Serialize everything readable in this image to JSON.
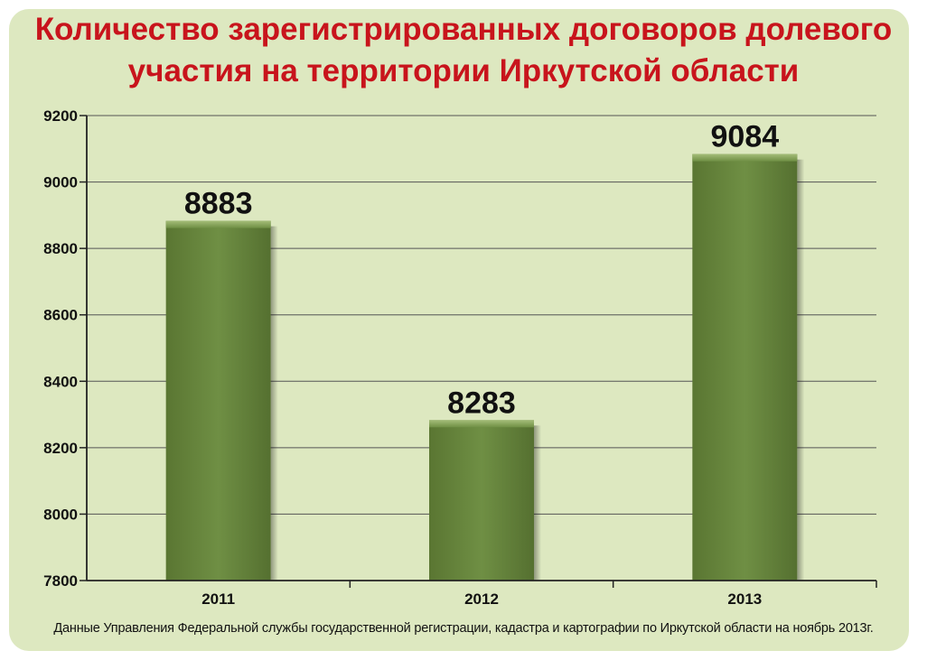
{
  "chart_data": {
    "type": "bar",
    "title": "Количество зарегистрированных договоров долевого участия на территории Иркутской области",
    "categories": [
      "2011",
      "2012",
      "2013"
    ],
    "values": [
      8883,
      8283,
      9084
    ],
    "data_labels": [
      "8883",
      "8283",
      "9084"
    ],
    "ylim": [
      7800,
      9200
    ],
    "yticks": [
      7800,
      8000,
      8200,
      8400,
      8600,
      8800,
      9000,
      9200
    ],
    "grid": true,
    "legend": "none",
    "xlabel": "",
    "ylabel": "",
    "colors": {
      "bar": "#6a8a40",
      "bar_light": "#8aa85a",
      "bar_dark": "#4a6228",
      "title": "#c8141c",
      "background": "#dde8c0"
    }
  },
  "source": "Данные Управления Федеральной службы государственной регистрации, кадастра и картографии по Иркутской области на ноябрь 2013г."
}
